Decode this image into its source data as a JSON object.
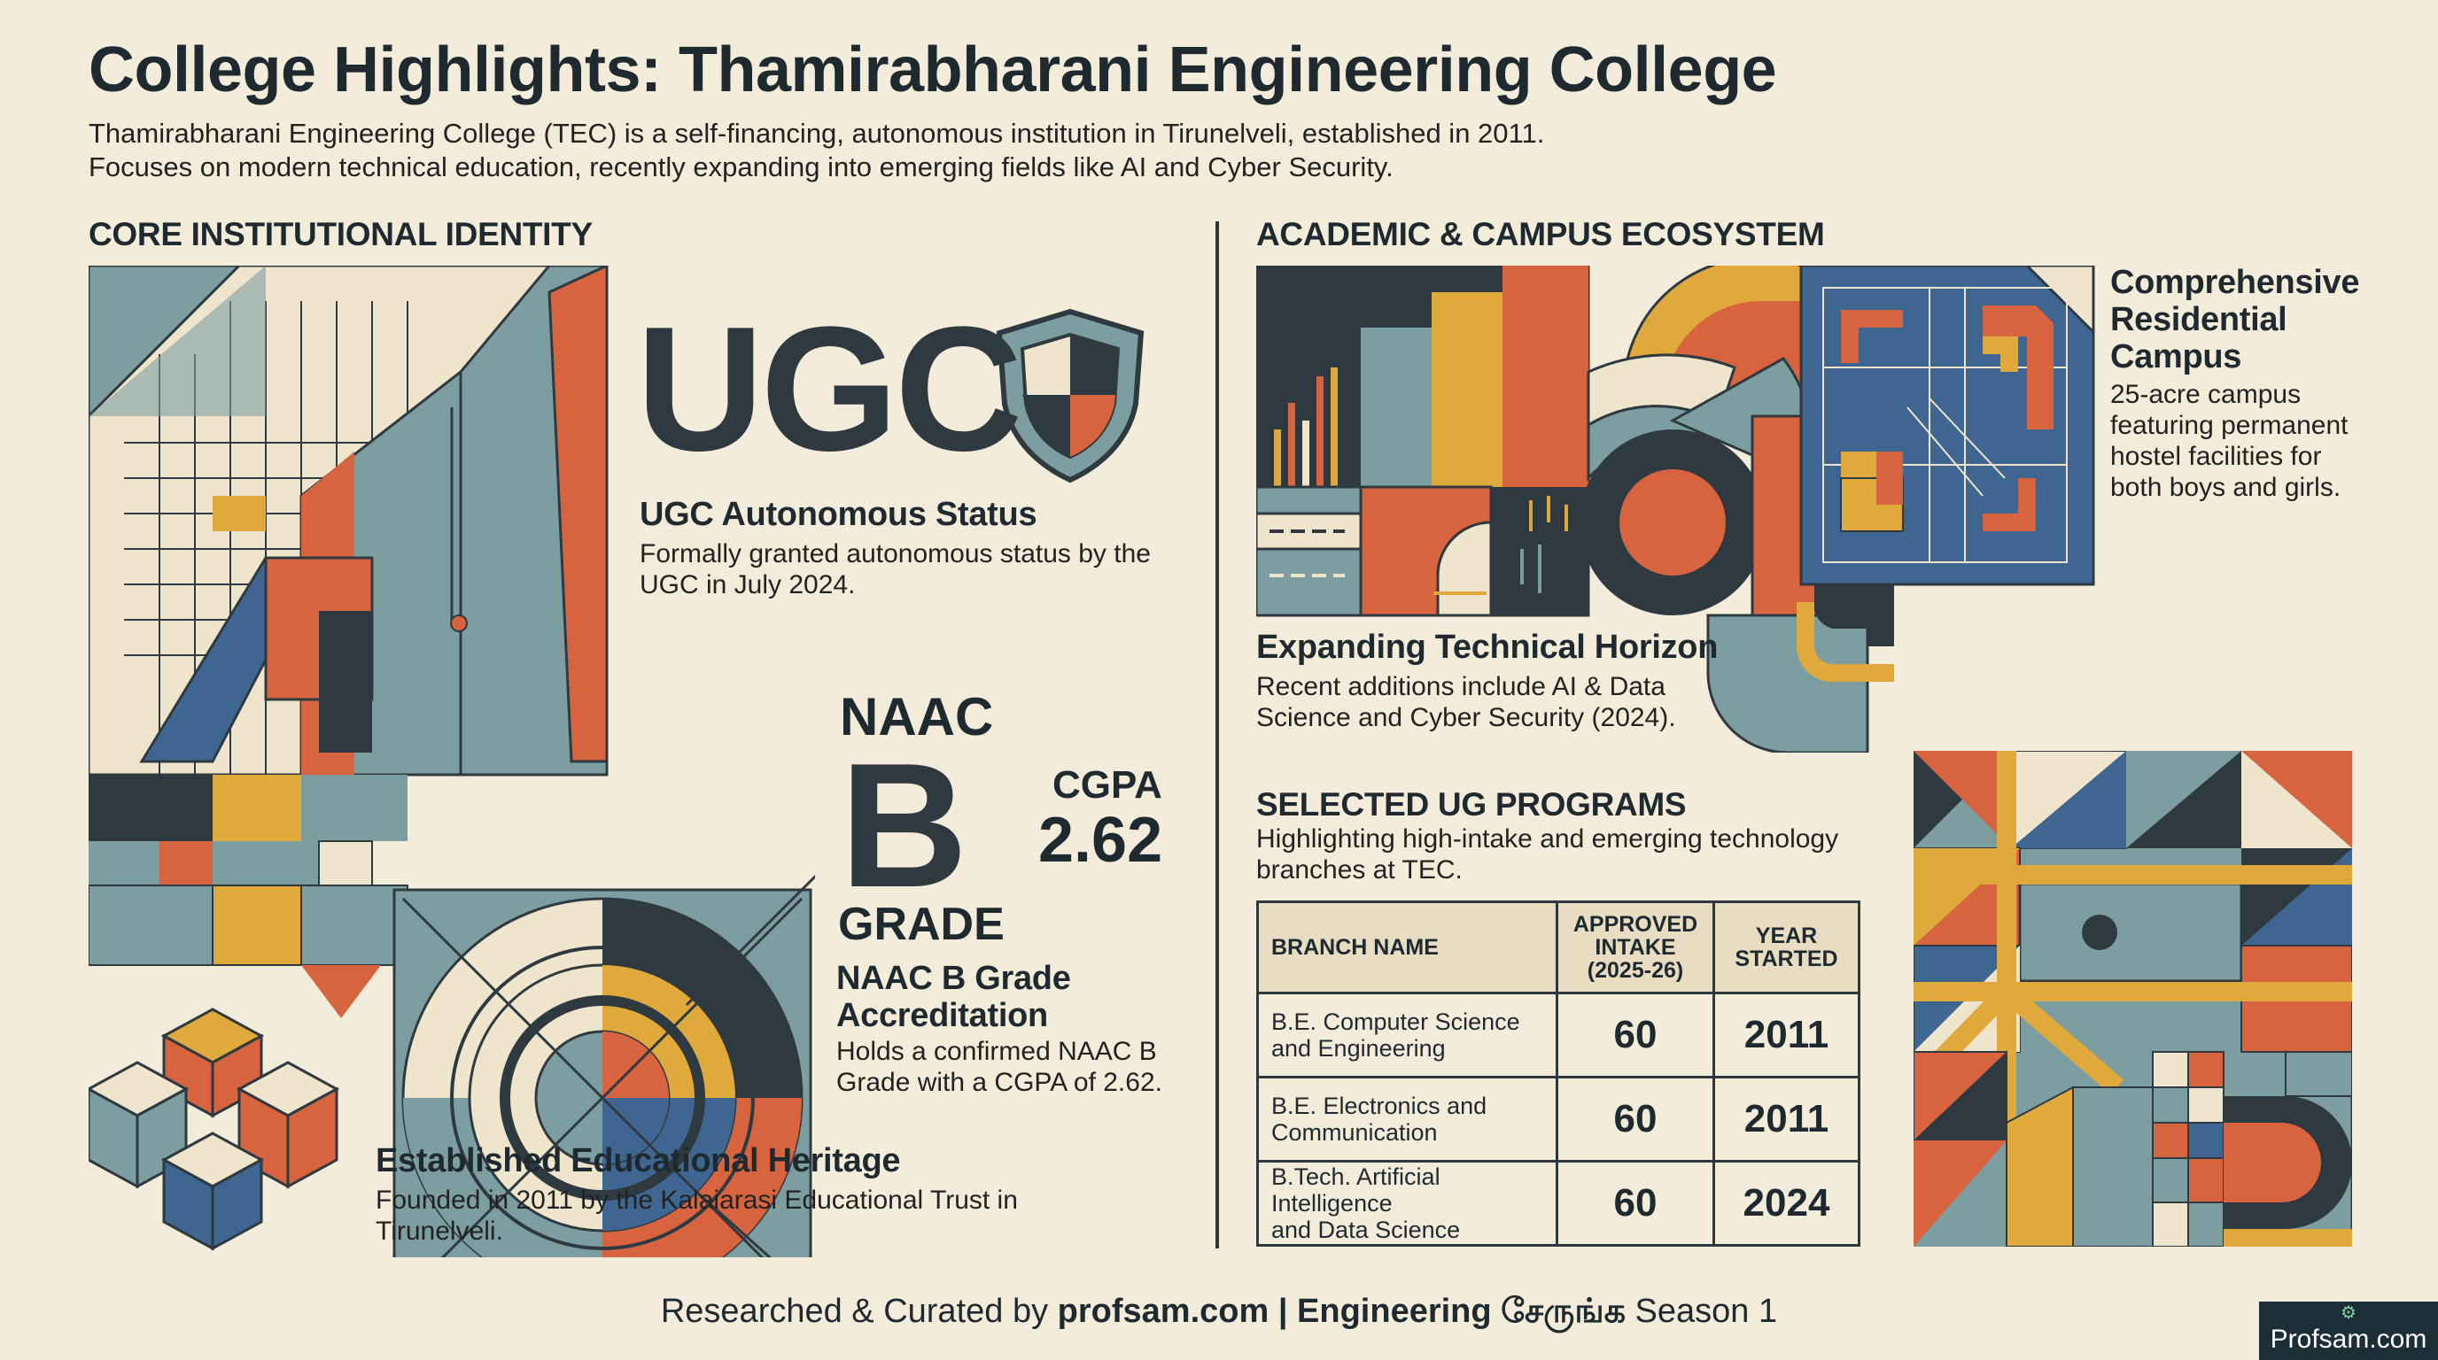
{
  "title": "College Highlights: Thamirabharani Engineering College",
  "intro": [
    "Thamirabharani Engineering College (TEC) is a self-financing, autonomous institution in Tirunelveli, established in 2011.",
    "Focuses on modern technical education, recently expanding into emerging fields like AI and Cyber Security."
  ],
  "left_section": {
    "heading": "CORE INSTITUTIONAL IDENTITY",
    "ugc": {
      "big_text": "UGC",
      "heading": "UGC Autonomous Status",
      "text": [
        "Formally granted autonomous status by the",
        "UGC in July 2024."
      ]
    },
    "naac": {
      "label": "NAAC",
      "grade_letter": "B",
      "grade_word": "GRADE",
      "cgpa_label": "CGPA",
      "cgpa_value": "2.62",
      "heading": [
        "NAAC B Grade",
        "Accreditation"
      ],
      "text": [
        "Holds a confirmed NAAC B",
        "Grade with a CGPA of 2.62."
      ]
    },
    "heritage": {
      "heading": "Established Educational Heritage",
      "text": [
        "Founded in 2011 by the Kalaiarasi Educational Trust in",
        "Tirunelveli."
      ]
    }
  },
  "right_section": {
    "heading": "ACADEMIC & CAMPUS ECOSYSTEM",
    "campus": {
      "heading": [
        "Comprehensive",
        "Residential",
        "Campus"
      ],
      "text": [
        "25-acre campus",
        "featuring permanent",
        "hostel facilities for",
        "both boys and girls."
      ]
    },
    "horizon": {
      "heading": "Expanding Technical Horizon",
      "text": [
        "Recent additions include AI & Data",
        "Science and Cyber Security (2024)."
      ]
    },
    "programs": {
      "heading": "SELECTED UG PROGRAMS",
      "text": [
        "Highlighting high-intake and emerging technology",
        "branches at TEC."
      ],
      "columns": [
        "BRANCH NAME",
        [
          "APPROVED",
          "INTAKE",
          "(2025-26)"
        ],
        [
          "YEAR",
          "STARTED"
        ]
      ],
      "rows": [
        {
          "branch": [
            "B.E. Computer Science",
            "and Engineering"
          ],
          "intake": "60",
          "year": "2011"
        },
        {
          "branch": [
            "B.E. Electronics and",
            "Communication"
          ],
          "intake": "60",
          "year": "2011"
        },
        {
          "branch": [
            "B.Tech. Artificial Intelligence",
            "and Data Science"
          ],
          "intake": "60",
          "year": "2024"
        }
      ]
    }
  },
  "footer": {
    "prefix": "Researched & Curated by ",
    "site": "profsam.com",
    "sep": " | ",
    "series": "Engineering சேருங்க",
    "season": " Season 1"
  },
  "badge": {
    "text": "Profsam.com",
    "icon": "robot-icon"
  },
  "colors": {
    "background": "#f4ecda",
    "teal": "#7d9ea0",
    "orange": "#d8633f",
    "mustard": "#e0a93c",
    "navy": "#3f6691",
    "charcoal": "#2f3a40",
    "cream": "#efe4cc"
  }
}
